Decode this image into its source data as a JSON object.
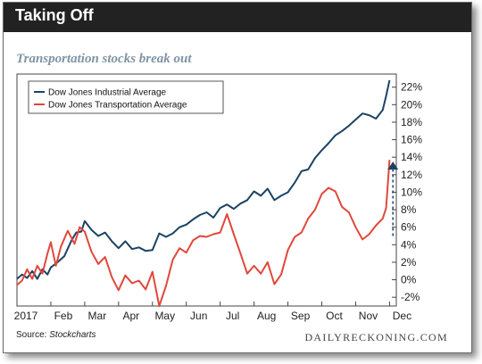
{
  "header": {
    "title": "Taking Off",
    "subtitle": "Transportation stocks break out"
  },
  "footer": {
    "source_label": "Source:",
    "source_value": "Stockcharts",
    "brand": "DAILYRECKONING.COM"
  },
  "colors": {
    "banner": "#222222",
    "djia": "#1c4363",
    "djta": "#e0483b",
    "subtitle": "#7f93a3"
  },
  "chart_data": {
    "type": "line",
    "title": "Taking Off",
    "subtitle": "Transportation stocks break out",
    "xlabel": "",
    "ylabel": "",
    "x_tick_labels": [
      "2017",
      "Feb",
      "Mar",
      "Apr",
      "May",
      "Jun",
      "Jul",
      "Aug",
      "Sep",
      "Oct",
      "Nov",
      "Dec"
    ],
    "x_tick_positions": [
      0,
      1,
      2,
      3,
      4,
      5,
      6,
      7,
      8,
      9,
      10,
      11
    ],
    "xlim": [
      0,
      11.2
    ],
    "ylim": [
      -3,
      23.5
    ],
    "y_ticks": [
      -2,
      0,
      2,
      4,
      6,
      8,
      10,
      12,
      14,
      16,
      18,
      20,
      22
    ],
    "y_tick_labels": [
      "-2%",
      "0%",
      "2%",
      "4%",
      "6%",
      "8%",
      "10%",
      "12%",
      "14%",
      "16%",
      "18%",
      "20%",
      "22%"
    ],
    "y_axis_side": "right",
    "grid": false,
    "legend_position": "top-left",
    "annotation": "dashed upward arrow at Dec",
    "series": [
      {
        "name": "Dow Jones Industrial Average",
        "color": "#1c4363",
        "x": [
          0,
          0.15,
          0.3,
          0.45,
          0.6,
          0.75,
          0.9,
          1.0,
          1.2,
          1.4,
          1.6,
          1.75,
          1.9,
          2.0,
          2.2,
          2.4,
          2.6,
          2.8,
          3.0,
          3.2,
          3.4,
          3.6,
          3.8,
          4.0,
          4.2,
          4.4,
          4.6,
          4.8,
          5.0,
          5.2,
          5.4,
          5.6,
          5.8,
          6.0,
          6.2,
          6.4,
          6.6,
          6.8,
          7.0,
          7.2,
          7.4,
          7.6,
          7.8,
          8.0,
          8.2,
          8.4,
          8.6,
          8.8,
          9.0,
          9.2,
          9.4,
          9.6,
          9.8,
          10.0,
          10.2,
          10.4,
          10.6,
          10.8,
          10.9,
          11.0
        ],
        "y": [
          0.1,
          0.6,
          0.2,
          1.0,
          0.1,
          1.2,
          0.6,
          1.4,
          2.0,
          2.7,
          4.4,
          5.4,
          5.5,
          6.7,
          5.7,
          5.0,
          5.4,
          4.4,
          3.6,
          4.4,
          3.5,
          3.7,
          3.3,
          3.4,
          5.3,
          4.9,
          5.3,
          6.0,
          6.3,
          6.9,
          7.4,
          7.7,
          7.1,
          8.2,
          8.6,
          8.1,
          8.7,
          9.1,
          10.1,
          9.6,
          10.4,
          9.1,
          9.6,
          10.0,
          11.1,
          12.4,
          12.6,
          13.9,
          14.8,
          15.6,
          16.5,
          17.0,
          17.6,
          18.3,
          19.0,
          18.8,
          18.4,
          19.4,
          21.0,
          22.8
        ]
      },
      {
        "name": "Dow Jones Transportation Average",
        "color": "#e0483b",
        "x": [
          0,
          0.15,
          0.3,
          0.45,
          0.6,
          0.75,
          0.9,
          1.0,
          1.15,
          1.3,
          1.5,
          1.7,
          1.85,
          2.0,
          2.2,
          2.4,
          2.6,
          2.8,
          3.0,
          3.2,
          3.4,
          3.6,
          3.8,
          4.0,
          4.2,
          4.4,
          4.6,
          4.8,
          5.0,
          5.2,
          5.4,
          5.6,
          5.8,
          6.0,
          6.2,
          6.4,
          6.6,
          6.8,
          7.0,
          7.2,
          7.4,
          7.6,
          7.8,
          8.0,
          8.2,
          8.4,
          8.6,
          8.8,
          9.0,
          9.2,
          9.4,
          9.6,
          9.8,
          10.0,
          10.2,
          10.4,
          10.6,
          10.8,
          10.9,
          11.0
        ],
        "y": [
          -0.6,
          -0.1,
          1.2,
          0.1,
          1.6,
          0.7,
          3.0,
          4.3,
          1.6,
          3.8,
          5.6,
          4.1,
          6.0,
          5.5,
          3.2,
          1.8,
          2.6,
          0.3,
          -1.2,
          0.5,
          -0.4,
          -0.1,
          -1.1,
          0.9,
          -3.0,
          -0.7,
          2.3,
          3.6,
          3.1,
          4.5,
          5.0,
          4.9,
          5.2,
          5.4,
          7.5,
          5.2,
          3.0,
          0.7,
          1.6,
          0.7,
          2.0,
          -0.5,
          0.6,
          3.4,
          4.9,
          5.4,
          7.0,
          8.0,
          9.8,
          10.5,
          10.1,
          8.3,
          7.7,
          6.0,
          4.6,
          5.2,
          6.2,
          7.0,
          8.2,
          13.7
        ]
      }
    ]
  }
}
